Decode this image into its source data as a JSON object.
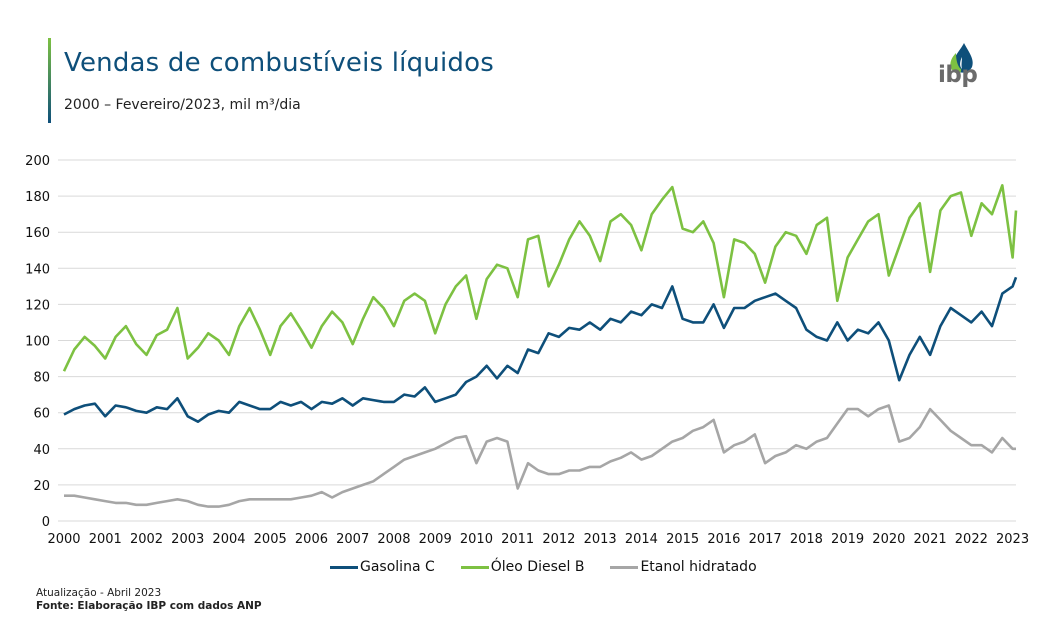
{
  "header": {
    "title": "Vendas de combustíveis líquidos",
    "subtitle": "2000 – Fevereiro/2023, mil m³/dia",
    "logo_text": "ibp",
    "logo_icon": "droplet-leaf-icon"
  },
  "footer": {
    "update": "Atualização - Abril 2023",
    "source": "Fonte: Elaboração IBP com dados ANP"
  },
  "chart_data": {
    "type": "line",
    "title": "Vendas de combustíveis líquidos",
    "subtitle": "2000 – Fevereiro/2023, mil m³/dia",
    "xlabel": "",
    "ylabel": "",
    "ylim": [
      0,
      200
    ],
    "yticks": [
      "0",
      "20",
      "40",
      "60",
      "80",
      "100",
      "120",
      "140",
      "160",
      "180",
      "200"
    ],
    "xlim": [
      2000,
      2023.083
    ],
    "xticks": [
      "2000",
      "2001",
      "2002",
      "2003",
      "2004",
      "2005",
      "2006",
      "2007",
      "2008",
      "2009",
      "2010",
      "2011",
      "2012",
      "2013",
      "2014",
      "2015",
      "2016",
      "2017",
      "2018",
      "2019",
      "2020",
      "2021",
      "2022",
      "2023"
    ],
    "grid": "horizontal",
    "legend_position": "bottom",
    "x_unit": "year (quarterly samples, approx.)",
    "x": [
      2000.0,
      2000.25,
      2000.5,
      2000.75,
      2001.0,
      2001.25,
      2001.5,
      2001.75,
      2002.0,
      2002.25,
      2002.5,
      2002.75,
      2003.0,
      2003.25,
      2003.5,
      2003.75,
      2004.0,
      2004.25,
      2004.5,
      2004.75,
      2005.0,
      2005.25,
      2005.5,
      2005.75,
      2006.0,
      2006.25,
      2006.5,
      2006.75,
      2007.0,
      2007.25,
      2007.5,
      2007.75,
      2008.0,
      2008.25,
      2008.5,
      2008.75,
      2009.0,
      2009.25,
      2009.5,
      2009.75,
      2010.0,
      2010.25,
      2010.5,
      2010.75,
      2011.0,
      2011.25,
      2011.5,
      2011.75,
      2012.0,
      2012.25,
      2012.5,
      2012.75,
      2013.0,
      2013.25,
      2013.5,
      2013.75,
      2014.0,
      2014.25,
      2014.5,
      2014.75,
      2015.0,
      2015.25,
      2015.5,
      2015.75,
      2016.0,
      2016.25,
      2016.5,
      2016.75,
      2017.0,
      2017.25,
      2017.5,
      2017.75,
      2018.0,
      2018.25,
      2018.5,
      2018.75,
      2019.0,
      2019.25,
      2019.5,
      2019.75,
      2020.0,
      2020.25,
      2020.5,
      2020.75,
      2021.0,
      2021.25,
      2021.5,
      2021.75,
      2022.0,
      2022.25,
      2022.5,
      2022.75,
      2023.0,
      2023.083
    ],
    "series": [
      {
        "name": "Gasolina C",
        "color": "#0e4f7a",
        "values": [
          59,
          62,
          64,
          65,
          58,
          64,
          63,
          61,
          60,
          63,
          62,
          68,
          58,
          55,
          59,
          61,
          60,
          66,
          64,
          62,
          62,
          66,
          64,
          66,
          62,
          66,
          65,
          68,
          64,
          68,
          67,
          66,
          66,
          70,
          69,
          74,
          66,
          68,
          70,
          77,
          80,
          86,
          79,
          86,
          82,
          95,
          93,
          104,
          102,
          107,
          106,
          110,
          106,
          112,
          110,
          116,
          114,
          120,
          118,
          130,
          112,
          110,
          110,
          120,
          107,
          118,
          118,
          122,
          124,
          126,
          122,
          118,
          106,
          102,
          100,
          110,
          100,
          106,
          104,
          110,
          100,
          78,
          92,
          102,
          92,
          108,
          118,
          114,
          110,
          116,
          108,
          126,
          130,
          135
        ]
      },
      {
        "name": "Óleo Diesel B",
        "color": "#7dc142",
        "values": [
          83,
          95,
          102,
          97,
          90,
          102,
          108,
          98,
          92,
          103,
          106,
          118,
          90,
          96,
          104,
          100,
          92,
          108,
          118,
          106,
          92,
          108,
          115,
          106,
          96,
          108,
          116,
          110,
          98,
          112,
          124,
          118,
          108,
          122,
          126,
          122,
          104,
          120,
          130,
          136,
          112,
          134,
          142,
          140,
          124,
          156,
          158,
          130,
          142,
          156,
          166,
          158,
          144,
          166,
          170,
          164,
          150,
          170,
          178,
          185,
          162,
          160,
          166,
          154,
          124,
          156,
          154,
          148,
          132,
          152,
          160,
          158,
          148,
          164,
          168,
          122,
          146,
          156,
          166,
          170,
          136,
          152,
          168,
          176,
          138,
          172,
          180,
          182,
          158,
          176,
          170,
          186,
          146,
          172
        ]
      },
      {
        "name": "Etanol hidratado",
        "color": "#a6a6a6",
        "values": [
          14,
          14,
          13,
          12,
          11,
          10,
          10,
          9,
          9,
          10,
          11,
          12,
          11,
          9,
          8,
          8,
          9,
          11,
          12,
          12,
          12,
          12,
          12,
          13,
          14,
          16,
          13,
          16,
          18,
          20,
          22,
          26,
          30,
          34,
          36,
          38,
          40,
          43,
          46,
          47,
          32,
          44,
          46,
          44,
          18,
          32,
          28,
          26,
          26,
          28,
          28,
          30,
          30,
          33,
          35,
          38,
          34,
          36,
          40,
          44,
          46,
          50,
          52,
          56,
          38,
          42,
          44,
          48,
          32,
          36,
          38,
          42,
          40,
          44,
          46,
          54,
          62,
          62,
          58,
          62,
          64,
          44,
          46,
          52,
          62,
          56,
          50,
          46,
          42,
          42,
          38,
          46,
          40,
          40
        ]
      }
    ]
  }
}
